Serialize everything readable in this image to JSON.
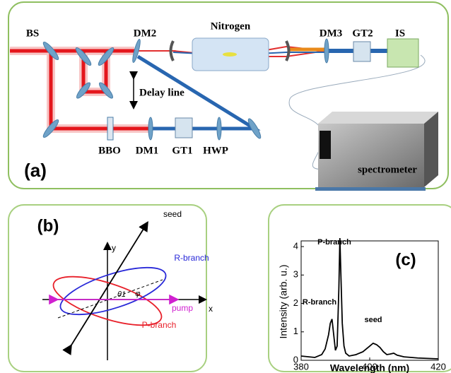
{
  "panel_a": {
    "label": "(a)",
    "components": [
      "BS",
      "DM2",
      "Nitrogen",
      "DM3",
      "GT2",
      "IS",
      "Delay line",
      "BBO",
      "DM1",
      "GT1",
      "HWP",
      "spectrometer"
    ]
  },
  "panel_b": {
    "label": "(b)",
    "axis_x": "x",
    "axis_y": "y",
    "seed": "seed",
    "r_branch": "R-branch",
    "p_branch": "P-branch",
    "pump": "pump",
    "theta": "θ1",
    "phi": "φ"
  },
  "panel_c": {
    "label": "(c)",
    "xlabel": "Wavelength (nm)",
    "ylabel": "Intensity (arb. u.)",
    "annotations": [
      "P-branch",
      "R-branch",
      "seed"
    ],
    "xlim": [
      380,
      420
    ],
    "ylim": [
      0,
      4.2
    ],
    "xticks": [
      380,
      400,
      420
    ],
    "yticks": [
      0,
      1,
      2,
      3,
      4
    ],
    "color": "#000000",
    "x": [
      380,
      384,
      386,
      387,
      388,
      388.5,
      389,
      389.5,
      390,
      390.5,
      391,
      391.3,
      391.6,
      392,
      392.5,
      393,
      394,
      396,
      398,
      400,
      401,
      402,
      403,
      404,
      405,
      406,
      407,
      408,
      410,
      414,
      420
    ],
    "values": [
      0.15,
      0.1,
      0.2,
      0.4,
      0.9,
      1.3,
      1.45,
      0.9,
      0.35,
      0.5,
      2.5,
      4.3,
      3.0,
      1.3,
      0.5,
      0.25,
      0.15,
      0.2,
      0.3,
      0.5,
      0.6,
      0.55,
      0.45,
      0.3,
      0.2,
      0.22,
      0.25,
      0.18,
      0.12,
      0.08,
      0.05
    ]
  }
}
